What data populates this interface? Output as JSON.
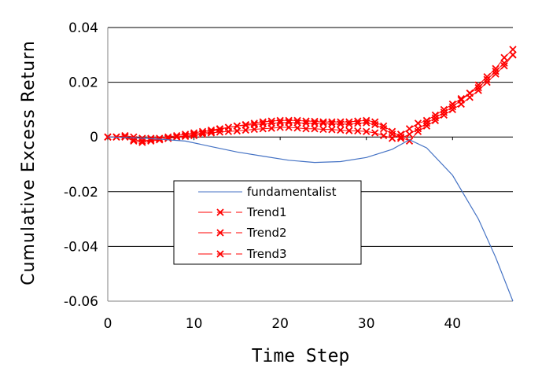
{
  "chart_data": {
    "type": "line",
    "title": "",
    "xlabel": "Time Step",
    "ylabel": "Cumulative Excess Return",
    "xlim": [
      0,
      47
    ],
    "ylim": [
      -0.06,
      0.04
    ],
    "xticks": [
      0,
      10,
      20,
      30,
      40
    ],
    "yticks": [
      0.04,
      0.02,
      0,
      -0.02,
      -0.04,
      -0.06
    ],
    "ytick_labels": [
      "0.04",
      "0.02",
      "0",
      "-0.02",
      "-0.04",
      "-0.06"
    ],
    "grid": "horizontal",
    "legend": "center-left",
    "series": [
      {
        "name": "fundamentalist",
        "color": "#4472c4",
        "marker": "none",
        "x": [
          0,
          3,
          6,
          9,
          12,
          15,
          18,
          21,
          24,
          27,
          30,
          33,
          35,
          37,
          40,
          43,
          45,
          47
        ],
        "y": [
          0,
          -0.0003,
          -0.0008,
          -0.0015,
          -0.0035,
          -0.0055,
          -0.007,
          -0.0085,
          -0.0093,
          -0.009,
          -0.0075,
          -0.0045,
          -0.001,
          -0.004,
          -0.014,
          -0.03,
          -0.044,
          -0.06
        ]
      },
      {
        "name": "Trend1",
        "color": "#ff0000",
        "marker": "x",
        "x": [
          0,
          1,
          2,
          3,
          4,
          5,
          6,
          7,
          8,
          9,
          10,
          11,
          12,
          13,
          14,
          15,
          16,
          17,
          18,
          19,
          20,
          21,
          22,
          23,
          24,
          25,
          26,
          27,
          28,
          29,
          30,
          31,
          32,
          33,
          34,
          35,
          36,
          37,
          38,
          39,
          40,
          41,
          42,
          43,
          44,
          45,
          46,
          47
        ],
        "y": [
          0,
          0,
          0,
          -0.001,
          -0.0015,
          -0.001,
          -0.001,
          -0.0005,
          0,
          0.0002,
          0.0005,
          0.001,
          0.0015,
          0.0018,
          0.002,
          0.0022,
          0.0025,
          0.0028,
          0.003,
          0.0032,
          0.0035,
          0.0035,
          0.0033,
          0.003,
          0.003,
          0.0028,
          0.0027,
          0.0025,
          0.0023,
          0.0022,
          0.002,
          0.0015,
          0.0005,
          -0.0005,
          0.001,
          0.003,
          0.005,
          0.006,
          0.008,
          0.01,
          0.012,
          0.014,
          0.016,
          0.018,
          0.021,
          0.024,
          0.027,
          0.03
        ]
      },
      {
        "name": "Trend2",
        "color": "#ff0000",
        "marker": "x",
        "x": [
          0,
          1,
          2,
          3,
          4,
          5,
          6,
          7,
          8,
          9,
          10,
          11,
          12,
          13,
          14,
          15,
          16,
          17,
          18,
          19,
          20,
          21,
          22,
          23,
          24,
          25,
          26,
          27,
          28,
          29,
          30,
          31,
          32,
          33,
          34,
          35,
          36,
          37,
          38,
          39,
          40,
          41,
          42,
          43,
          44,
          45,
          46,
          47
        ],
        "y": [
          0,
          0,
          0,
          -0.0015,
          -0.002,
          -0.0015,
          -0.001,
          -0.0005,
          0,
          0.0005,
          0.001,
          0.0015,
          0.002,
          0.0028,
          0.0035,
          0.004,
          0.0045,
          0.005,
          0.0055,
          0.0058,
          0.006,
          0.006,
          0.006,
          0.0058,
          0.0057,
          0.0055,
          0.0055,
          0.0055,
          0.0055,
          0.0058,
          0.006,
          0.0055,
          0.004,
          0.002,
          0,
          -0.0015,
          0.002,
          0.004,
          0.006,
          0.008,
          0.01,
          0.012,
          0.0145,
          0.017,
          0.02,
          0.023,
          0.026,
          0.03
        ]
      },
      {
        "name": "Trend3",
        "color": "#ff0000",
        "marker": "x",
        "x": [
          0,
          1,
          2,
          3,
          4,
          5,
          6,
          7,
          8,
          9,
          10,
          11,
          12,
          13,
          14,
          15,
          16,
          17,
          18,
          19,
          20,
          21,
          22,
          23,
          24,
          25,
          26,
          27,
          28,
          29,
          30,
          31,
          32,
          33,
          34,
          35,
          36,
          37,
          38,
          39,
          40,
          41,
          42,
          43,
          44,
          45,
          46,
          47
        ],
        "y": [
          0,
          0,
          0.0005,
          0,
          -0.0005,
          -0.0005,
          -0.0005,
          0,
          0.0005,
          0.001,
          0.0015,
          0.002,
          0.0025,
          0.003,
          0.0035,
          0.004,
          0.0043,
          0.0045,
          0.0048,
          0.005,
          0.0052,
          0.0053,
          0.0052,
          0.005,
          0.005,
          0.005,
          0.0048,
          0.0047,
          0.0047,
          0.005,
          0.0052,
          0.0045,
          0.003,
          0.001,
          -0.0005,
          0.001,
          0.003,
          0.005,
          0.007,
          0.009,
          0.011,
          0.0135,
          0.016,
          0.019,
          0.022,
          0.025,
          0.029,
          0.032
        ]
      }
    ]
  }
}
